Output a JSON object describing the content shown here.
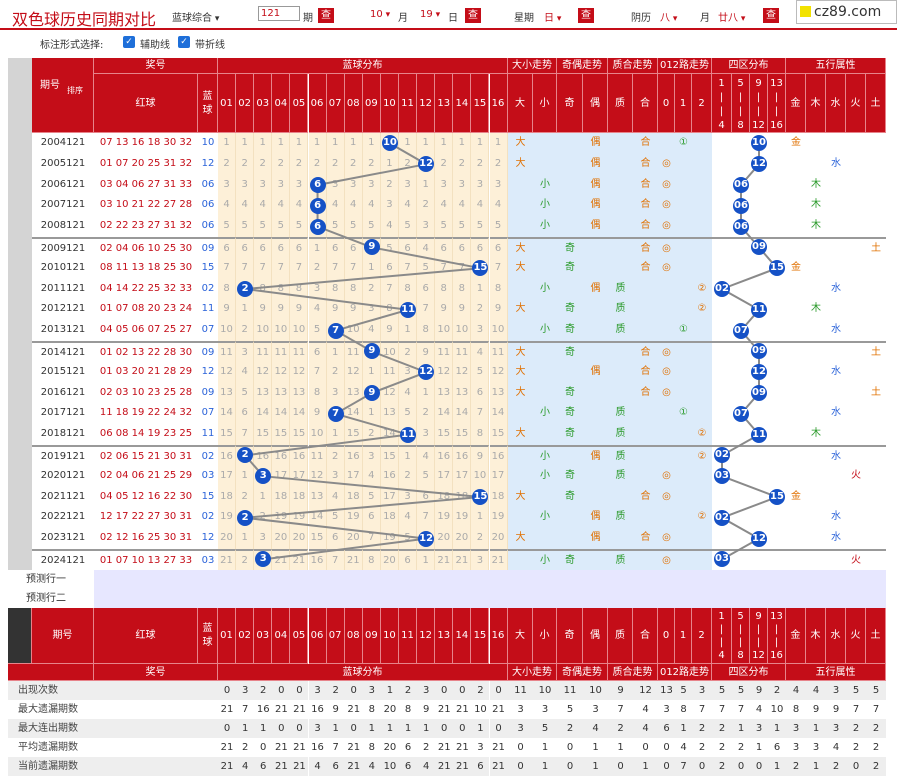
{
  "title": "双色球历史同期对比",
  "toolbar": {
    "play_select": "蓝球综合",
    "issue_value": "121",
    "issue_suffix": "期",
    "query": "查",
    "month_sel": "10",
    "month_label": "月",
    "day_sel": "19",
    "day_label": "日",
    "week_label": "星期",
    "week_sel": "日",
    "lunar_label": "阴历",
    "lunar_month_sel": "八",
    "lunar_day_sel": "廿八"
  },
  "logo": {
    "text": "cz89.com"
  },
  "options": {
    "label": "标注形式选择:",
    "aux_line": "辅助线",
    "fold_line": "带折线"
  },
  "header": {
    "issue": "期号",
    "sort": "排序",
    "prize": "奖号",
    "red": "红球",
    "blue": "蓝球",
    "blue_dist": "蓝球分布",
    "size": "大小走势",
    "oddeven": "奇偶走势",
    "primecomp": "质合走势",
    "road012": "012路走势",
    "zones": "四区分布",
    "wuxing": "五行属性",
    "big": "大",
    "small": "小",
    "odd": "奇",
    "even": "偶",
    "prime": "质",
    "comp": "合",
    "r0": "0",
    "r1": "1",
    "r2": "2",
    "zone_labels": [
      "1|4",
      "5|8",
      "9|12",
      "13|16"
    ],
    "wx": [
      "金",
      "木",
      "水",
      "火",
      "土"
    ],
    "nums": [
      "01",
      "02",
      "03",
      "04",
      "05",
      "06",
      "07",
      "08",
      "09",
      "10",
      "11",
      "12",
      "13",
      "14",
      "15",
      "16"
    ]
  },
  "rows": [
    {
      "issue": "2004121",
      "reds": "07 13 16 18 30 32",
      "blue": "10"
    },
    {
      "issue": "2005121",
      "reds": "01 07 20 25 31 32",
      "blue": "12"
    },
    {
      "issue": "2006121",
      "reds": "03 04 06 27 31 33",
      "blue": "06"
    },
    {
      "issue": "2007121",
      "reds": "03 10 21 22 27 28",
      "blue": "06"
    },
    {
      "issue": "2008121",
      "reds": "02 22 23 27 31 32",
      "blue": "06"
    },
    {
      "issue": "2009121",
      "reds": "02 04 06 10 25 30",
      "blue": "09"
    },
    {
      "issue": "2010121",
      "reds": "08 11 13 18 25 30",
      "blue": "15"
    },
    {
      "issue": "2011121",
      "reds": "04 14 22 25 32 33",
      "blue": "02"
    },
    {
      "issue": "2012121",
      "reds": "01 07 08 20 23 24",
      "blue": "11"
    },
    {
      "issue": "2013121",
      "reds": "04 05 06 07 25 27",
      "blue": "07"
    },
    {
      "issue": "2014121",
      "reds": "01 02 13 22 28 30",
      "blue": "09"
    },
    {
      "issue": "2015121",
      "reds": "01 03 20 21 28 29",
      "blue": "12"
    },
    {
      "issue": "2016121",
      "reds": "02 03 10 23 25 28",
      "blue": "09"
    },
    {
      "issue": "2017121",
      "reds": "11 18 19 22 24 32",
      "blue": "07"
    },
    {
      "issue": "2018121",
      "reds": "06 08 14 19 23 25",
      "blue": "11"
    },
    {
      "issue": "2019121",
      "reds": "02 06 15 21 30 31",
      "blue": "02"
    },
    {
      "issue": "2020121",
      "reds": "02 04 06 21 25 29",
      "blue": "03"
    },
    {
      "issue": "2021121",
      "reds": "04 05 12 16 22 30",
      "blue": "15"
    },
    {
      "issue": "2022121",
      "reds": "12 17 22 27 30 31",
      "blue": "02"
    },
    {
      "issue": "2023121",
      "reds": "02 12 16 25 30 31",
      "blue": "12"
    },
    {
      "issue": "2024121",
      "reds": "01 07 10 13 27 33",
      "blue": "03"
    }
  ],
  "predict": [
    "预测行一",
    "预测行二"
  ],
  "stats": [
    {
      "label": "出现次数",
      "vals": [
        "0",
        "3",
        "2",
        "0",
        "0",
        "3",
        "2",
        "0",
        "3",
        "1",
        "2",
        "3",
        "0",
        "0",
        "2",
        "0",
        "11",
        "10",
        "11",
        "10",
        "9",
        "12",
        "13",
        "5",
        "3",
        "5",
        "5",
        "9",
        "2",
        "4",
        "4",
        "3",
        "5",
        "5"
      ]
    },
    {
      "label": "最大遗漏期数",
      "vals": [
        "21",
        "7",
        "16",
        "21",
        "21",
        "16",
        "9",
        "21",
        "8",
        "20",
        "8",
        "9",
        "21",
        "21",
        "10",
        "21",
        "3",
        "3",
        "5",
        "3",
        "7",
        "4",
        "3",
        "8",
        "7",
        "7",
        "7",
        "4",
        "10",
        "8",
        "9",
        "9",
        "7",
        "7"
      ]
    },
    {
      "label": "最大连出期数",
      "vals": [
        "0",
        "1",
        "1",
        "0",
        "0",
        "3",
        "1",
        "0",
        "1",
        "1",
        "1",
        "1",
        "0",
        "0",
        "1",
        "0",
        "3",
        "5",
        "2",
        "4",
        "2",
        "4",
        "6",
        "1",
        "2",
        "2",
        "1",
        "3",
        "1",
        "3",
        "1",
        "3",
        "2",
        "2"
      ]
    },
    {
      "label": "平均遗漏期数",
      "vals": [
        "21",
        "2",
        "0",
        "21",
        "21",
        "16",
        "7",
        "21",
        "8",
        "20",
        "6",
        "2",
        "21",
        "21",
        "3",
        "21",
        "0",
        "1",
        "0",
        "1",
        "1",
        "0",
        "0",
        "4",
        "2",
        "2",
        "2",
        "1",
        "6",
        "3",
        "3",
        "4",
        "2",
        "2"
      ]
    },
    {
      "label": "当前遗漏期数",
      "vals": [
        "21",
        "4",
        "6",
        "21",
        "21",
        "4",
        "6",
        "21",
        "4",
        "10",
        "6",
        "4",
        "21",
        "21",
        "6",
        "21",
        "0",
        "1",
        "0",
        "1",
        "0",
        "1",
        "0",
        "7",
        "0",
        "2",
        "0",
        "0",
        "1",
        "2",
        "1",
        "2",
        "0",
        "2"
      ]
    }
  ],
  "colors": {
    "accent": "#c40d18",
    "ball": "#1551c6",
    "blue_area": "#fdf0d8",
    "side_area": "#d8e8f8"
  }
}
